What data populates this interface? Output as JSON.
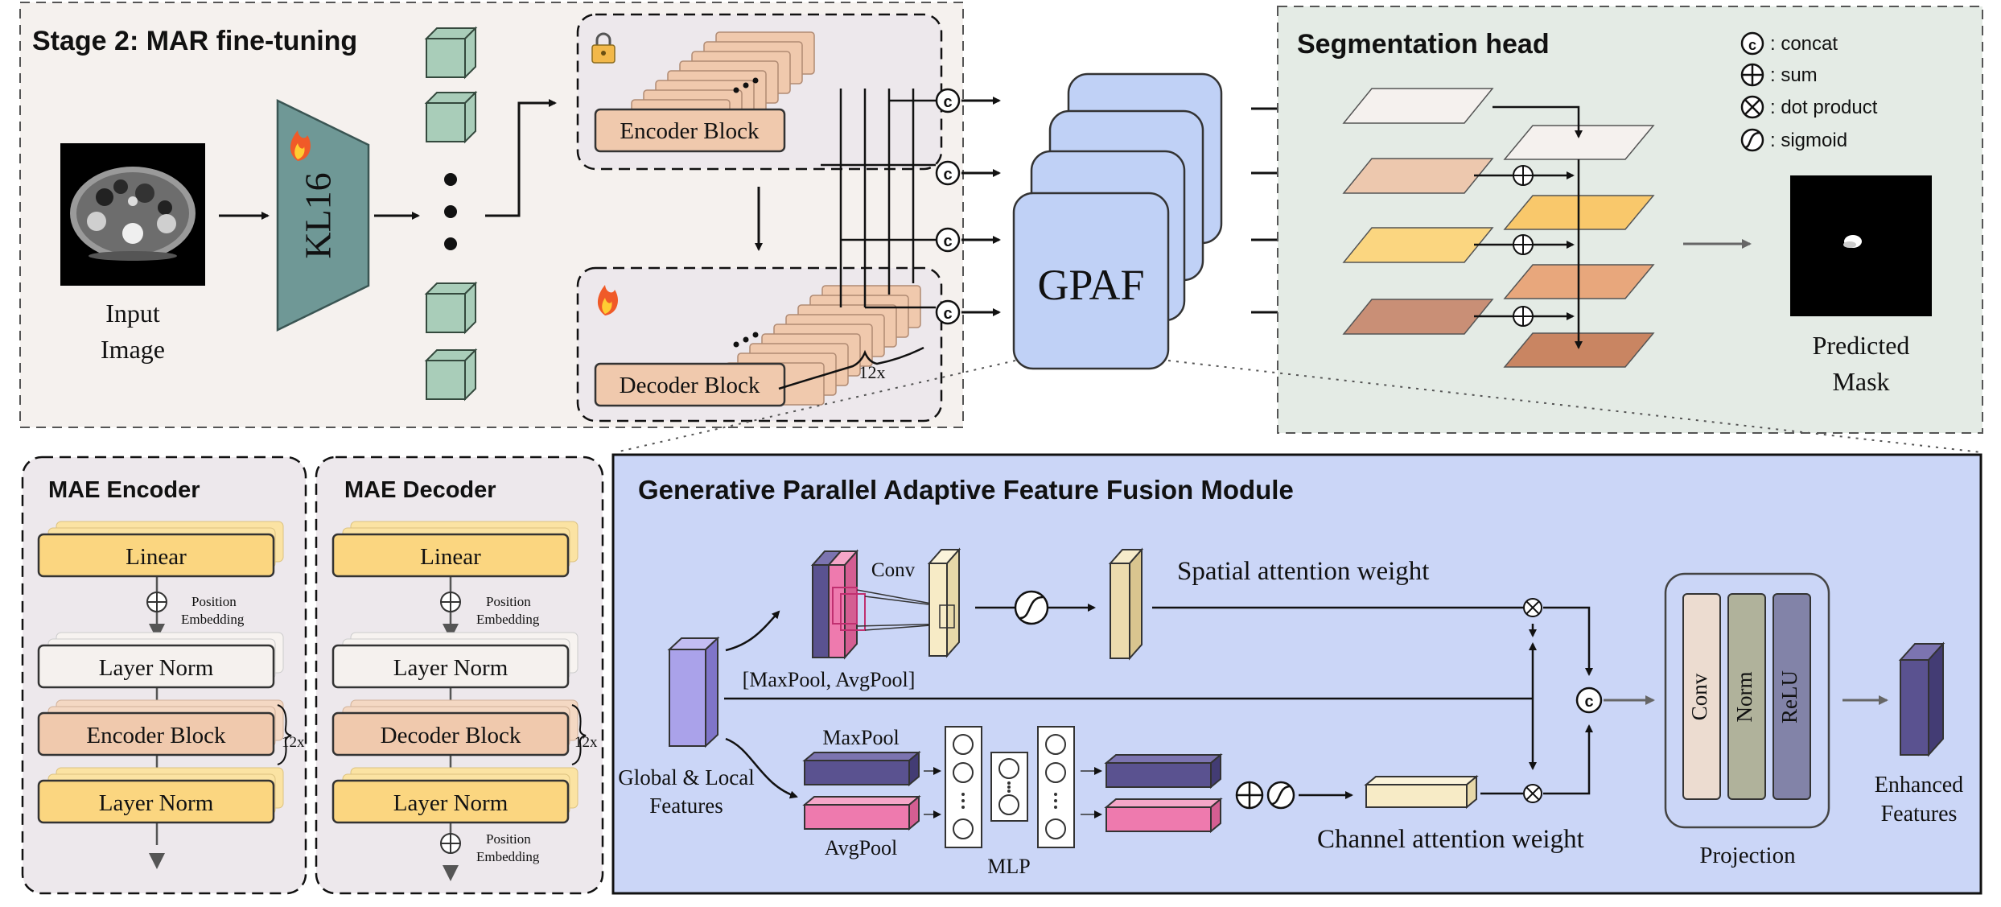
{
  "stage2": {
    "title": "Stage 2: MAR fine-tuning",
    "input_label_1": "Input",
    "input_label_2": "Image",
    "kl16": "KL16",
    "encoder_block": "Encoder Block",
    "decoder_block": "Decoder Block",
    "repeat": "12x"
  },
  "gpaf": {
    "label": "GPAF"
  },
  "seg_head": {
    "title": "Segmentation head",
    "legend": [
      {
        "symbol": "c",
        "text": ": concat"
      },
      {
        "symbol": "+",
        "text": ": sum"
      },
      {
        "symbol": "x",
        "text": ": dot product"
      },
      {
        "symbol": "s",
        "text": ": sigmoid"
      }
    ],
    "pred_label_1": "Predicted",
    "pred_label_2": "Mask"
  },
  "mae_encoder": {
    "title": "MAE Encoder",
    "linear": "Linear",
    "pos_1": "Position",
    "pos_2": "Embedding",
    "layer_norm_1": "Layer Norm",
    "block": "Encoder Block",
    "repeat": "12x",
    "layer_norm_2": "Layer Norm"
  },
  "mae_decoder": {
    "title": "MAE Decoder",
    "linear": "Linear",
    "pos_1": "Position",
    "pos_2": "Embedding",
    "layer_norm_1": "Layer Norm",
    "block": "Decoder Block",
    "repeat": "12x",
    "layer_norm_2": "Layer Norm",
    "pos2_1": "Position",
    "pos2_2": "Embedding"
  },
  "gpaf_module": {
    "title": "Generative Parallel Adaptive Feature Fusion Module",
    "conv": "Conv",
    "pool_label": "[MaxPool, AvgPool]",
    "spatial_weight": "Spatial attention weight",
    "global_1": "Global & Local",
    "global_2": "Features",
    "maxpool": "MaxPool",
    "avgpool": "AvgPool",
    "mlp": "MLP",
    "channel_weight": "Channel attention weight",
    "proj_conv": "Conv",
    "proj_norm": "Norm",
    "proj_relu": "ReLU",
    "projection": "Projection",
    "enhanced_1": "Enhanced",
    "enhanced_2": "Features"
  },
  "colors": {
    "panel_top": "#f5f1ee",
    "panel_seg": "#e4ebe5",
    "panel_mae": "#ede8ec",
    "panel_gpaf": "#cbd6f7",
    "block_peach": "#f0c9ad",
    "block_yellow": "#fbd680",
    "cube_green": "#a9cdb9",
    "kl16": "#6f9896",
    "gpaf_card": "#c0d1f6",
    "purple": "#5a5290",
    "pink": "#ee7aae",
    "cream": "#f7ebc6"
  }
}
